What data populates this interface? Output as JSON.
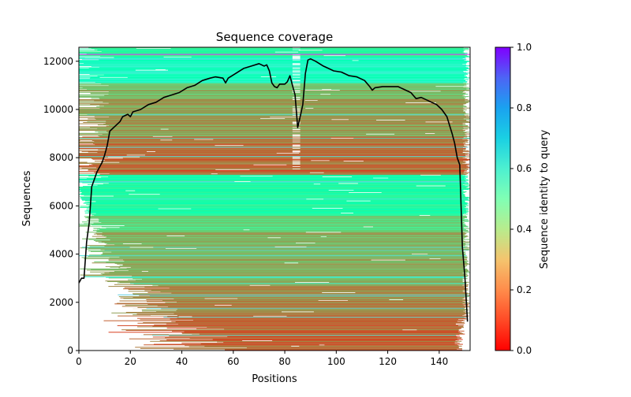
{
  "chart_data": {
    "type": "heatmap",
    "title": "Sequence coverage",
    "xlabel": "Positions",
    "ylabel": "Sequences",
    "xlim": [
      0,
      152
    ],
    "ylim": [
      0,
      12580
    ],
    "xticks": [
      0,
      20,
      40,
      60,
      80,
      100,
      120,
      140
    ],
    "yticks": [
      0,
      2000,
      4000,
      6000,
      8000,
      10000,
      12000
    ],
    "grid": false,
    "colorbar": {
      "label": "Sequence identity to query",
      "colormap": "rainbow_r",
      "range": [
        0.0,
        1.0
      ],
      "ticks": [
        "0.0",
        "0.2",
        "0.4",
        "0.6",
        "0.8",
        "1.0"
      ]
    },
    "identity_bands": [
      {
        "from": 0,
        "to": 1400,
        "identity": 0.12
      },
      {
        "from": 1400,
        "to": 2700,
        "identity": 0.18
      },
      {
        "from": 2700,
        "to": 4900,
        "identity": 0.24
      },
      {
        "from": 4900,
        "to": 5600,
        "identity": 0.33
      },
      {
        "from": 5600,
        "to": 7300,
        "identity": 0.45
      },
      {
        "from": 7300,
        "to": 8900,
        "identity": 0.14
      },
      {
        "from": 8900,
        "to": 10500,
        "identity": 0.22
      },
      {
        "from": 10500,
        "to": 11100,
        "identity": 0.26
      },
      {
        "from": 11100,
        "to": 12200,
        "identity": 0.55
      },
      {
        "from": 12200,
        "to": 12580,
        "identity": 0.42
      }
    ],
    "series": [
      {
        "name": "coverage",
        "color": "#000000",
        "x": [
          0,
          1,
          2,
          3,
          4,
          5,
          6,
          7,
          8,
          9,
          10,
          11,
          12,
          14,
          16,
          17,
          19,
          20,
          21,
          24,
          27,
          30,
          33,
          36,
          39,
          42,
          45,
          48,
          51,
          53,
          56,
          57,
          58,
          61,
          64,
          67,
          70,
          72,
          73,
          74,
          75,
          76,
          77,
          78,
          80,
          81,
          82,
          83,
          84,
          85,
          86,
          87,
          88,
          89,
          90,
          92,
          95,
          97,
          99,
          102,
          105,
          108,
          111,
          113,
          114,
          115,
          118,
          121,
          124,
          127,
          129,
          131,
          133,
          135,
          137,
          139,
          141,
          143,
          145,
          146,
          147,
          148,
          149,
          150,
          151
        ],
        "y": [
          2800,
          3000,
          3000,
          4500,
          5300,
          6800,
          7100,
          7400,
          7600,
          7800,
          8100,
          8500,
          9100,
          9300,
          9500,
          9700,
          9800,
          9700,
          9900,
          10000,
          10200,
          10300,
          10500,
          10600,
          10700,
          10900,
          11000,
          11200,
          11300,
          11350,
          11300,
          11100,
          11300,
          11500,
          11700,
          11800,
          11900,
          11800,
          11850,
          11600,
          11100,
          10950,
          10900,
          11050,
          11050,
          11150,
          11400,
          11000,
          10600,
          9250,
          9700,
          10200,
          11500,
          12050,
          12100,
          12000,
          11800,
          11700,
          11600,
          11550,
          11400,
          11350,
          11200,
          10950,
          10800,
          10900,
          10950,
          10950,
          10950,
          10800,
          10700,
          10450,
          10500,
          10400,
          10300,
          10200,
          10000,
          9700,
          9000,
          8600,
          8000,
          7700,
          4300,
          3000,
          1200
        ]
      }
    ]
  }
}
